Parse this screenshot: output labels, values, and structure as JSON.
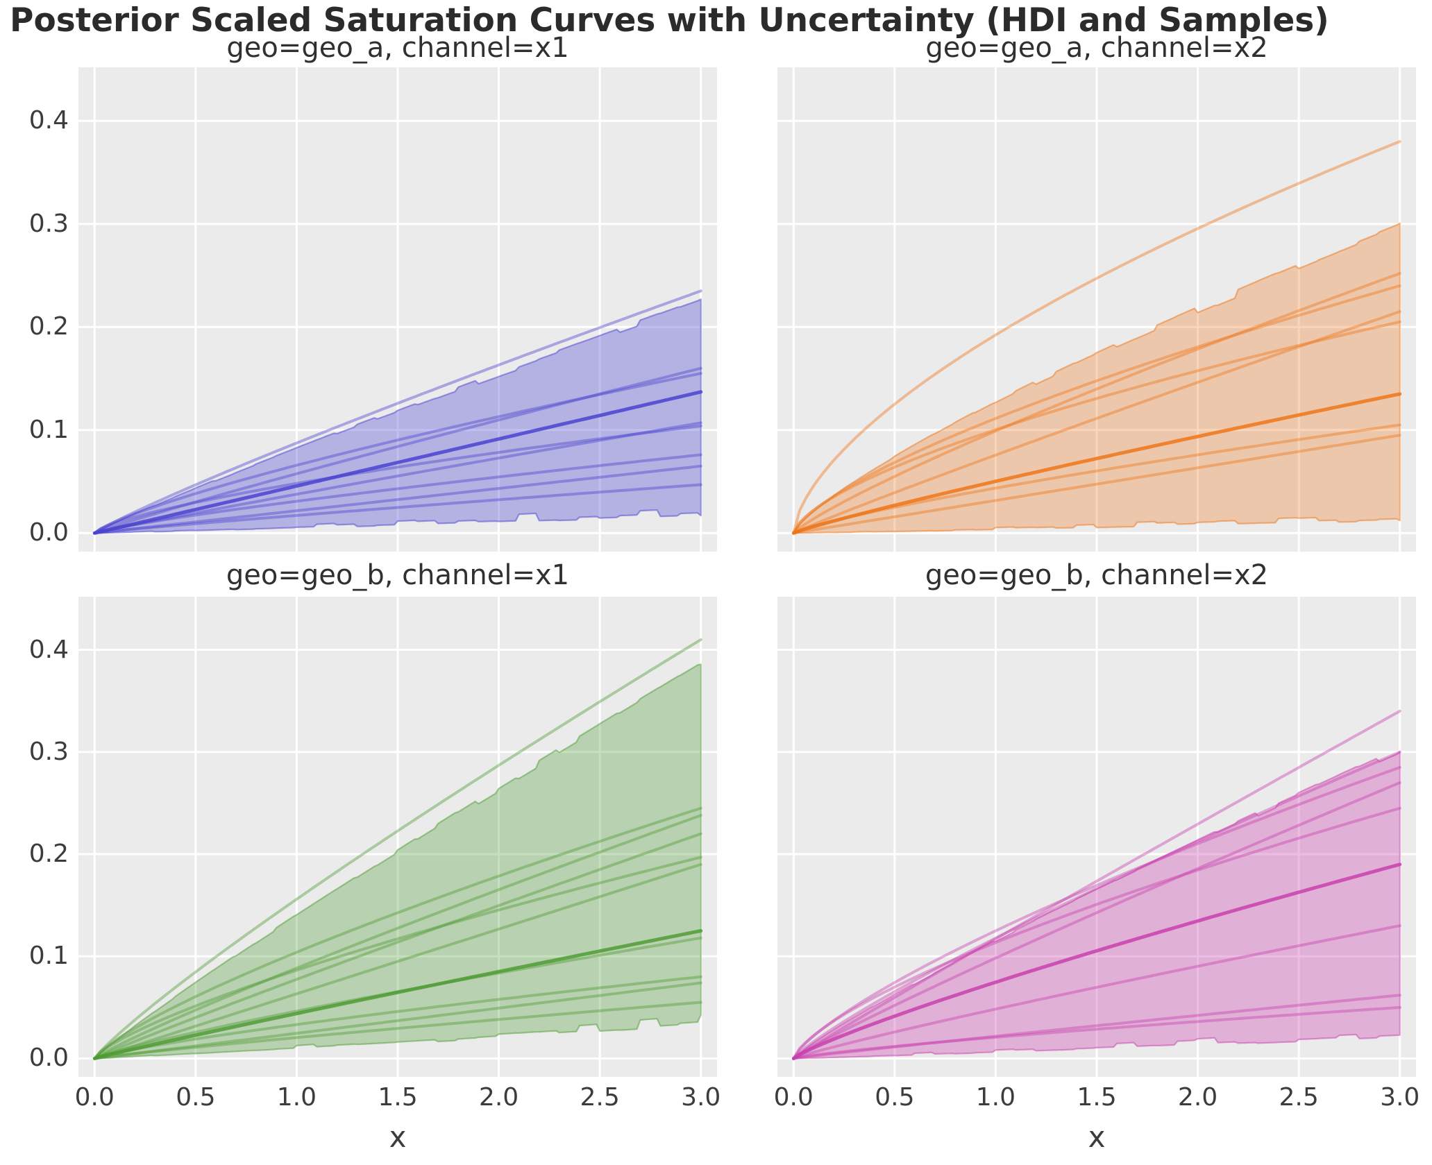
{
  "figure": {
    "title": "Posterior Scaled Saturation Curves with Uncertainty (HDI and Samples)",
    "background": "#ffffff"
  },
  "style": {
    "axes_background": "#ebebeb",
    "grid_color": "#ffffff",
    "title_color": "#303030",
    "tick_color": "#3c3c3c",
    "band_fill_alpha": 0.32,
    "band_stroke_alpha": 0.5,
    "sample_alpha": 0.42,
    "sample_emph_alpha": 0.85
  },
  "axes": {
    "x_label": "x",
    "x_ticks": [
      "0.0",
      "0.5",
      "1.0",
      "1.5",
      "2.0",
      "2.5",
      "3.0"
    ],
    "x_tick_values": [
      0.0,
      0.5,
      1.0,
      1.5,
      2.0,
      2.5,
      3.0
    ],
    "y_ticks": [
      "0.0",
      "0.1",
      "0.2",
      "0.3",
      "0.4"
    ],
    "y_tick_values": [
      0.0,
      0.1,
      0.2,
      0.3,
      0.4
    ],
    "xlim": [
      -0.08,
      3.08
    ],
    "ylim": [
      -0.018,
      0.452
    ],
    "grid": true
  },
  "chart_data": [
    {
      "type": "area",
      "title": "geo=geo_a, channel=x1",
      "geo": "geo_a",
      "channel": "x1",
      "color": "#4a42d0",
      "fill_alpha": 0.34,
      "model": "y = end * (x/3)^curve, x in [0,3]",
      "hdi_band": {
        "upper_end": 0.228,
        "upper_curve": 0.92,
        "lower_end": 0.016,
        "lower_curve": 1.1,
        "jitter_upper": 0.009,
        "jitter_lower": 0.013
      },
      "sample_curves": [
        {
          "end": 0.235,
          "curve": 0.9
        },
        {
          "end": 0.16,
          "curve": 0.93
        },
        {
          "end": 0.155,
          "curve": 0.78
        },
        {
          "end": 0.137,
          "curve": 1.0,
          "emph": true
        },
        {
          "end": 0.107,
          "curve": 0.95
        },
        {
          "end": 0.104,
          "curve": 0.7
        },
        {
          "end": 0.076,
          "curve": 0.82
        },
        {
          "end": 0.065,
          "curve": 1.0
        },
        {
          "end": 0.047,
          "curve": 0.92
        }
      ],
      "seed": 11
    },
    {
      "type": "area",
      "title": "geo=geo_a, channel=x2",
      "geo": "geo_a",
      "channel": "x2",
      "color": "#ee7518",
      "fill_alpha": 0.3,
      "model": "y = end * (x/3)^curve, x in [0,3]",
      "hdi_band": {
        "upper_end": 0.302,
        "upper_curve": 0.78,
        "lower_end": 0.012,
        "lower_curve": 1.2,
        "jitter_upper": 0.012,
        "jitter_lower": 0.01
      },
      "sample_curves": [
        {
          "end": 0.38,
          "curve": 0.62
        },
        {
          "end": 0.252,
          "curve": 0.85
        },
        {
          "end": 0.24,
          "curve": 0.7
        },
        {
          "end": 0.215,
          "curve": 0.95
        },
        {
          "end": 0.205,
          "curve": 0.65
        },
        {
          "end": 0.135,
          "curve": 0.9,
          "emph": true
        },
        {
          "end": 0.105,
          "curve": 0.8
        },
        {
          "end": 0.095,
          "curve": 1.0
        }
      ],
      "seed": 22
    },
    {
      "type": "area",
      "title": "geo=geo_b, channel=x1",
      "geo": "geo_b",
      "channel": "x1",
      "color": "#4f9c35",
      "fill_alpha": 0.32,
      "model": "y = end * (x/3)^curve, x in [0,3]",
      "hdi_band": {
        "upper_end": 0.388,
        "upper_curve": 0.92,
        "lower_end": 0.03,
        "lower_curve": 1.05,
        "jitter_upper": 0.01,
        "jitter_lower": 0.013
      },
      "sample_curves": [
        {
          "end": 0.41,
          "curve": 0.88
        },
        {
          "end": 0.245,
          "curve": 0.78
        },
        {
          "end": 0.238,
          "curve": 0.9
        },
        {
          "end": 0.22,
          "curve": 0.95
        },
        {
          "end": 0.197,
          "curve": 0.75
        },
        {
          "end": 0.19,
          "curve": 1.0
        },
        {
          "end": 0.125,
          "curve": 0.95,
          "emph": true
        },
        {
          "end": 0.118,
          "curve": 0.85
        },
        {
          "end": 0.08,
          "curve": 0.8
        },
        {
          "end": 0.074,
          "curve": 1.0
        },
        {
          "end": 0.055,
          "curve": 0.9
        }
      ],
      "seed": 33
    },
    {
      "type": "area",
      "title": "geo=geo_b, channel=x2",
      "geo": "geo_b",
      "channel": "x2",
      "color": "#c93fae",
      "fill_alpha": 0.34,
      "model": "y = end * (x/3)^curve, x in [0,3]",
      "hdi_band": {
        "upper_end": 0.306,
        "upper_curve": 0.88,
        "lower_end": 0.02,
        "lower_curve": 1.1,
        "jitter_upper": 0.01,
        "jitter_lower": 0.012
      },
      "sample_curves": [
        {
          "end": 0.34,
          "curve": 0.97
        },
        {
          "end": 0.3,
          "curve": 0.85
        },
        {
          "end": 0.285,
          "curve": 0.75
        },
        {
          "end": 0.27,
          "curve": 0.92
        },
        {
          "end": 0.245,
          "curve": 0.7
        },
        {
          "end": 0.19,
          "curve": 0.85,
          "emph": true
        },
        {
          "end": 0.13,
          "curve": 0.9
        },
        {
          "end": 0.062,
          "curve": 0.95
        },
        {
          "end": 0.05,
          "curve": 0.8
        }
      ],
      "seed": 44
    }
  ]
}
